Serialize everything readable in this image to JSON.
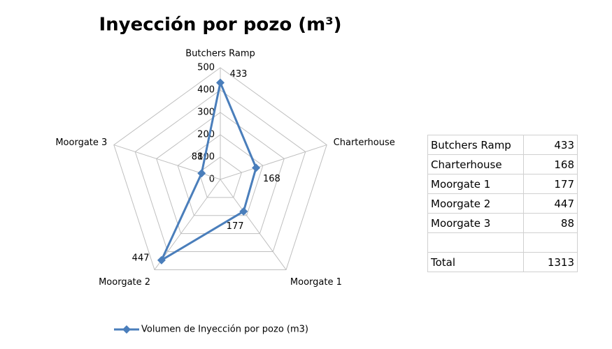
{
  "chart_data": {
    "type": "radar",
    "title": "Inyección por pozo (m³)",
    "categories": [
      "Butchers Ramp",
      "Charterhouse",
      "Moorgate 1",
      "Moorgate 2",
      "Moorgate 3"
    ],
    "series": [
      {
        "name": "Volumen de Inyección por pozo (m3)",
        "color": "#4a7ebb",
        "values": [
          433,
          168,
          177,
          447,
          88
        ]
      }
    ],
    "ylim": [
      0,
      500
    ],
    "yticks": [
      0,
      100,
      200,
      300,
      400,
      500
    ],
    "grid": true,
    "legend": "bottom"
  },
  "table": {
    "rows": [
      [
        "Butchers Ramp",
        433
      ],
      [
        "Charterhouse",
        168
      ],
      [
        "Moorgate 1",
        177
      ],
      [
        "Moorgate 2",
        447
      ],
      [
        "Moorgate 3",
        88
      ]
    ],
    "total": [
      "Total",
      1313
    ]
  }
}
